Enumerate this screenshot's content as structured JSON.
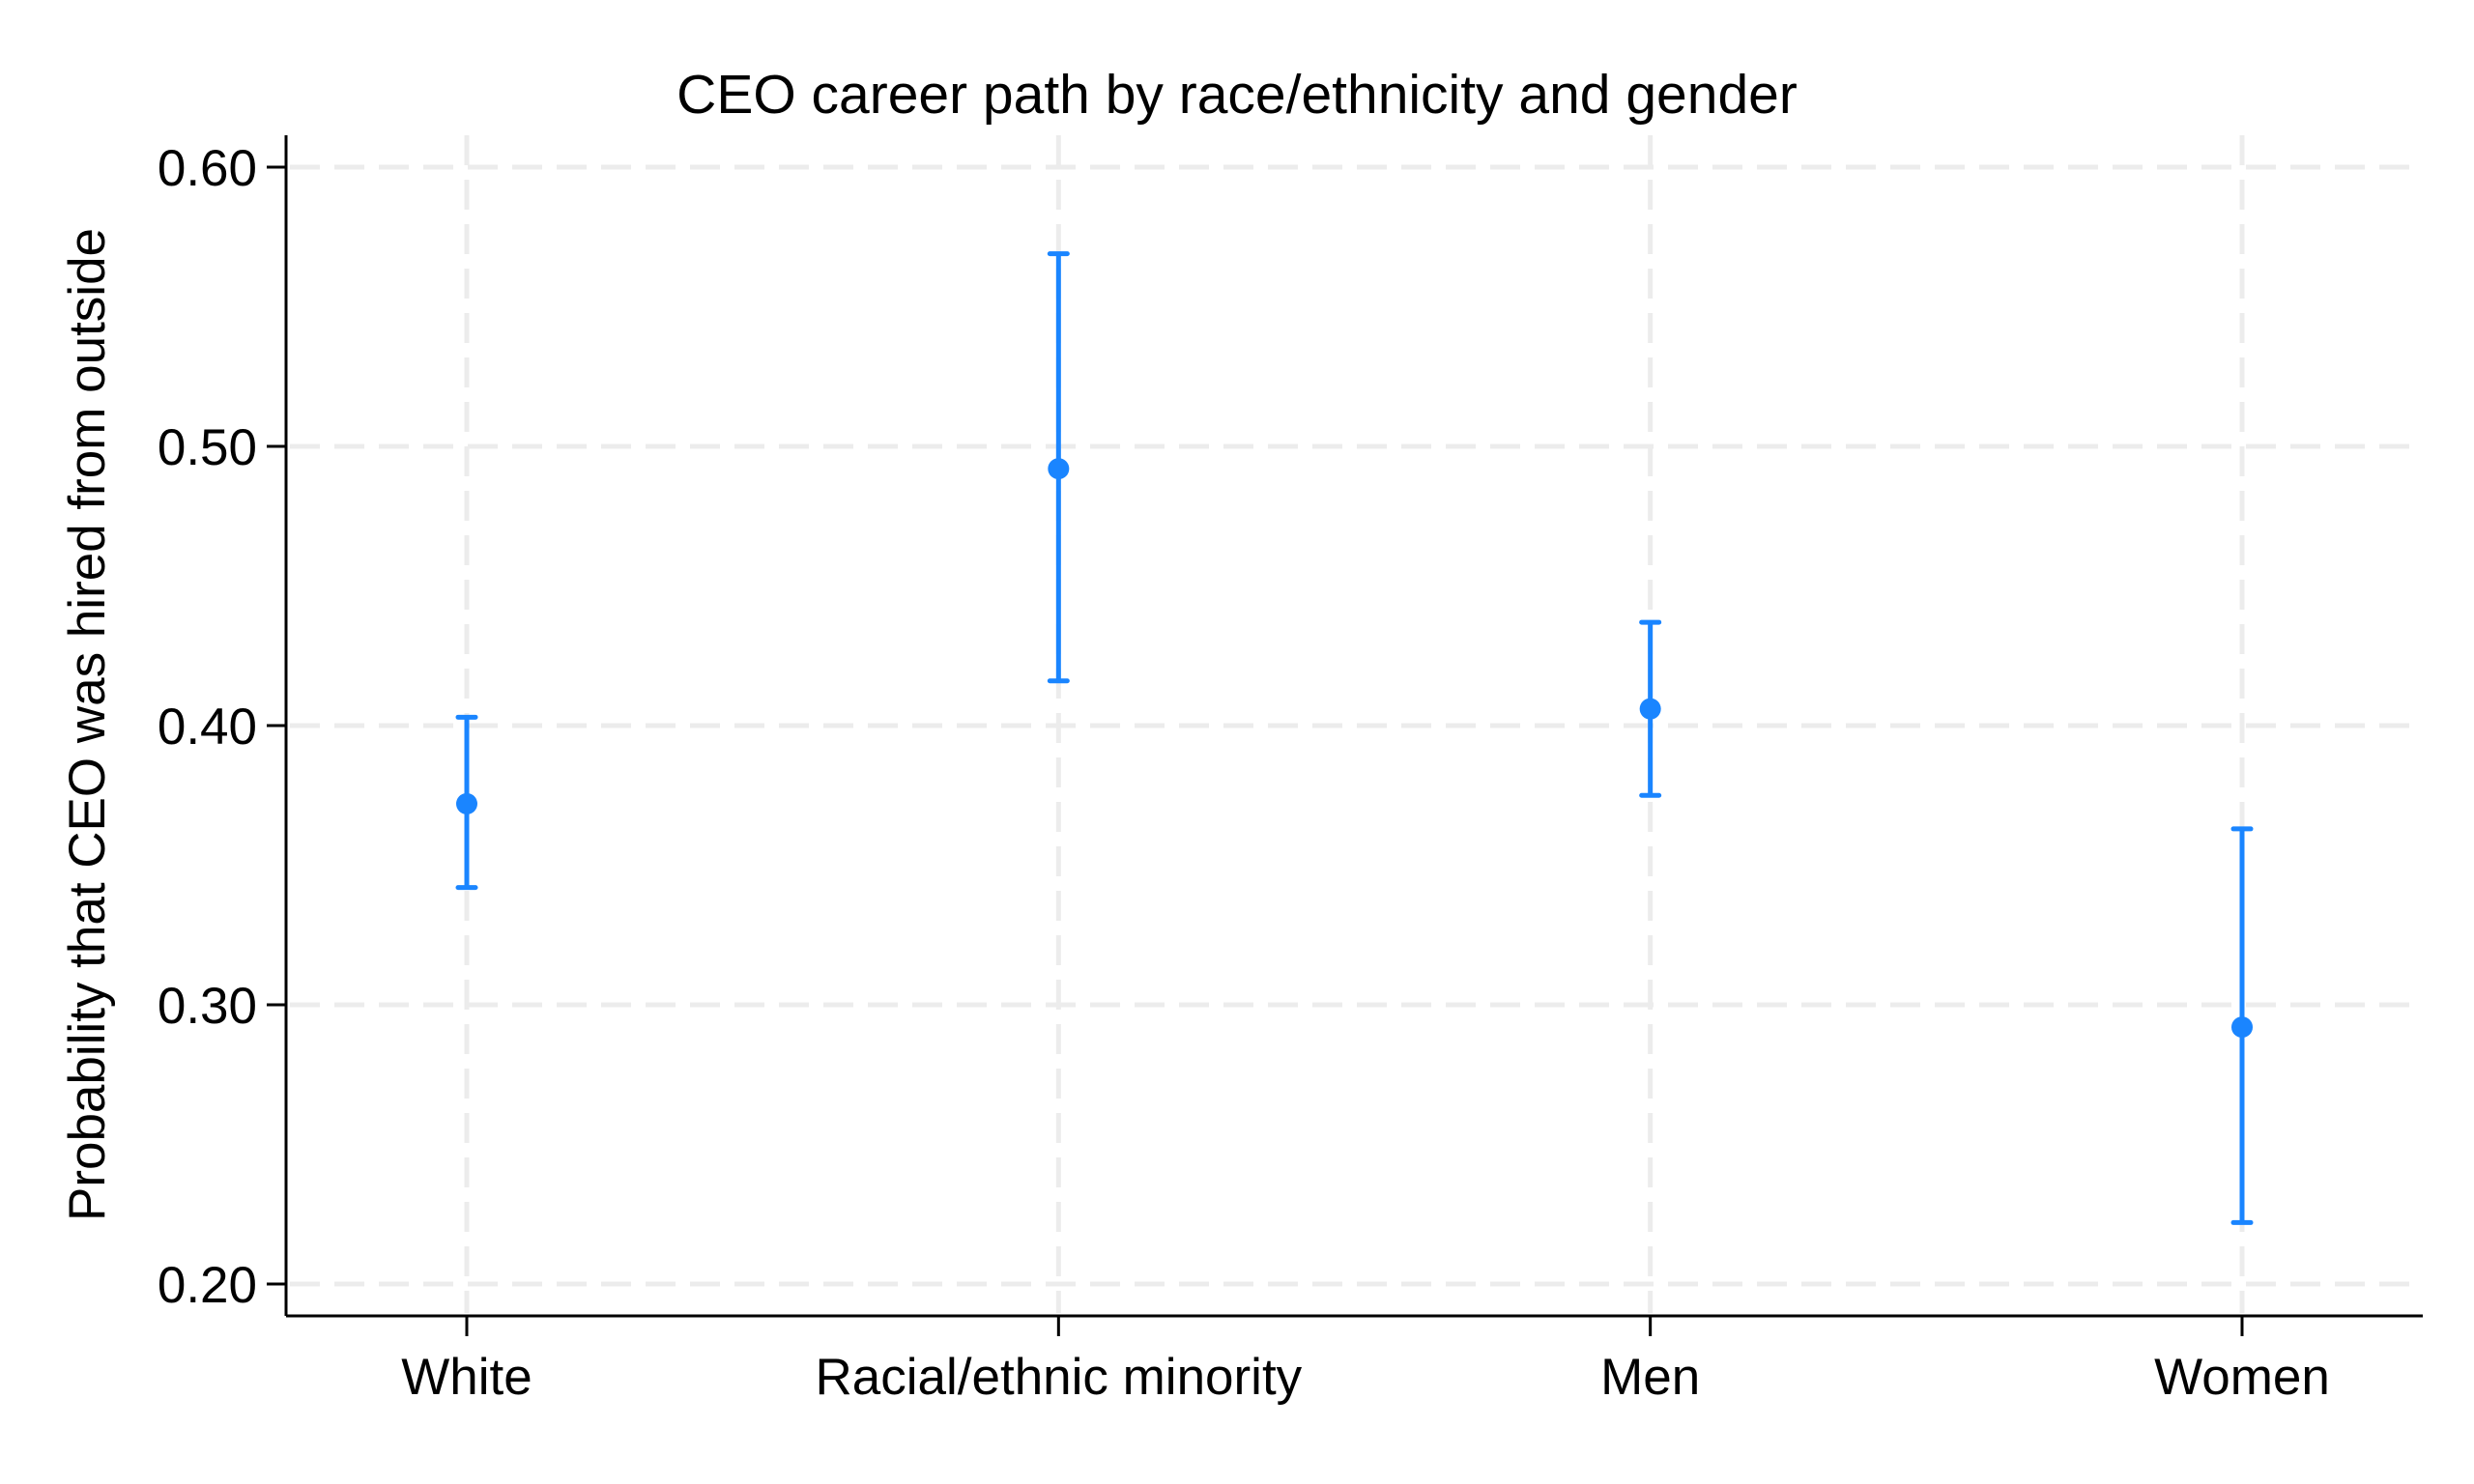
{
  "chart_data": {
    "type": "scatter",
    "subtype": "point estimate with confidence intervals",
    "title": "CEO career path by race/ethnicity and gender",
    "xlabel": "",
    "ylabel": "Probability that CEO was hired from outside",
    "categories": [
      "White",
      "Racial/ethnic minority",
      "Men",
      "Women"
    ],
    "series": [
      {
        "name": "Probability hired from outside",
        "color": "#1a85ff",
        "values": [
          0.372,
          0.492,
          0.406,
          0.292
        ],
        "ci_lower": [
          0.342,
          0.416,
          0.375,
          0.222
        ],
        "ci_upper": [
          0.403,
          0.569,
          0.437,
          0.363
        ]
      }
    ],
    "yticks": [
      0.2,
      0.3,
      0.4,
      0.5,
      0.6
    ],
    "ytick_labels": [
      "0.20",
      "0.30",
      "0.40",
      "0.50",
      "0.60"
    ],
    "ylim": [
      0.188,
      0.615
    ],
    "grid": true,
    "grid_style": "dashed",
    "legend": null
  },
  "colors": {
    "marker": "#1a85ff",
    "grid": "#ececec",
    "axis": "#000000",
    "background": "#ffffff"
  }
}
